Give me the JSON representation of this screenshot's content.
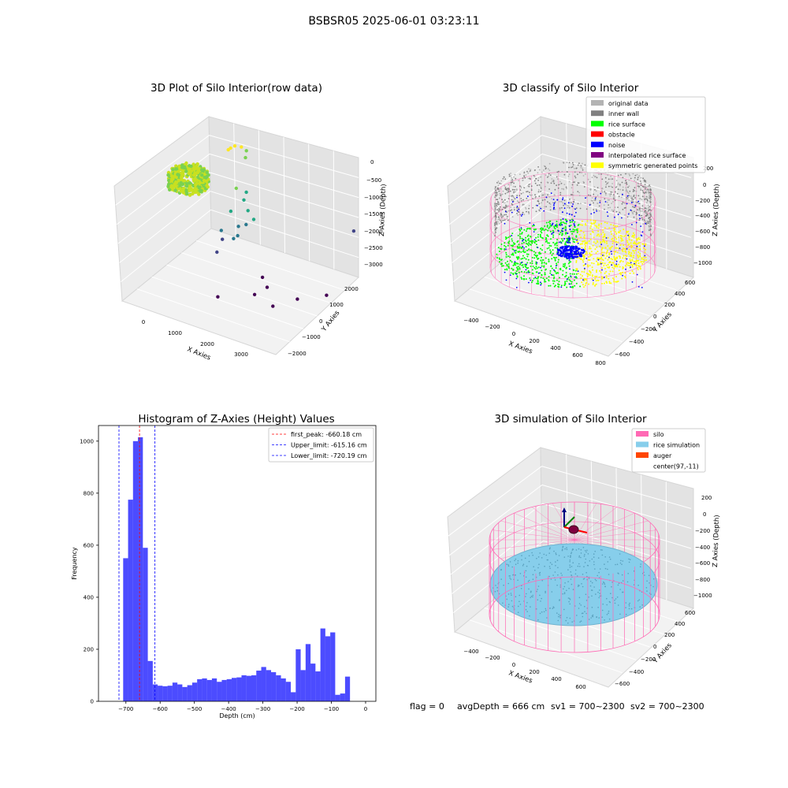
{
  "figure": {
    "suptitle": "BSBSR05 2025-06-01 03:23:11",
    "footer": {
      "flag": "flag = 0",
      "avg": "avgDepth = 666 cm",
      "sv1": "sv1 = 700~2300",
      "sv2": "sv2 = 700~2300"
    }
  },
  "colors": {
    "grey_light": "#b3b3b3",
    "grey_dark": "#808080",
    "rice_green": "#00ff00",
    "obstacle_red": "#ff0000",
    "noise_blue": "#0000ff",
    "interp_purple": "#800080",
    "sym_yellow": "#ffff00",
    "silo_pink": "#ff69b4",
    "rice_sim": "#87ceeb",
    "auger": "#ff4500",
    "hist_bar": "#0000ff"
  },
  "chart_data": [
    {
      "type": "scatter",
      "title": "3D Plot of Silo Interior(row data)",
      "xlabel": "X Axies",
      "ylabel": "Y Axies",
      "zlabel": "Z Axies (Depth)",
      "x_ticks": [
        "0",
        "1000",
        "2000",
        "3000"
      ],
      "y_ticks": [
        "−2000",
        "−1000",
        "0",
        "1000",
        "2000"
      ],
      "z_ticks": [
        "0",
        "−500",
        "−1000",
        "−1500",
        "−2000",
        "−2500",
        "−3000"
      ],
      "points": [
        [
          -600,
          1500,
          -350
        ],
        [
          -500,
          1600,
          -400
        ],
        [
          -400,
          1650,
          -500
        ],
        [
          -700,
          1400,
          -450
        ],
        [
          -550,
          1300,
          -300
        ],
        [
          -300,
          1500,
          -600
        ],
        [
          200,
          600,
          -900
        ],
        [
          400,
          700,
          -1000
        ],
        [
          500,
          500,
          -1100
        ],
        [
          300,
          300,
          -1400
        ],
        [
          700,
          400,
          -1300
        ],
        [
          600,
          200,
          -1700
        ],
        [
          900,
          100,
          -1500
        ],
        [
          200,
          100,
          -1900
        ],
        [
          400,
          -100,
          -2000
        ],
        [
          800,
          -200,
          -1800
        ],
        [
          1000,
          -300,
          -1600
        ],
        [
          500,
          -400,
          -2200
        ],
        [
          1200,
          0,
          -1200
        ],
        [
          2500,
          1800,
          -2000
        ],
        [
          1700,
          -300,
          -2600
        ],
        [
          2000,
          -500,
          -2700
        ],
        [
          1900,
          -800,
          -2800
        ],
        [
          2600,
          -200,
          -3000
        ],
        [
          1200,
          -1200,
          -2900
        ],
        [
          2500,
          -900,
          -2900
        ],
        [
          3000,
          300,
          -3000
        ]
      ]
    },
    {
      "type": "scatter",
      "title": "3D classify of Silo Interior",
      "xlabel": "X Axies",
      "ylabel": "Y Axies",
      "zlabel": "Z Axies (Depth)",
      "x_ticks": [
        "−400",
        "−200",
        "0",
        "200",
        "400",
        "600",
        "800"
      ],
      "y_ticks": [
        "−600",
        "−400",
        "−200",
        "0",
        "200",
        "400",
        "600"
      ],
      "z_ticks": [
        "−1000",
        "−800",
        "−600",
        "−400",
        "−200",
        "0",
        "200"
      ],
      "legend": [
        {
          "label": "original data",
          "color": "#b3b3b3"
        },
        {
          "label": "inner wall",
          "color": "#808080"
        },
        {
          "label": "rice surface",
          "color": "#00ff00"
        },
        {
          "label": "obstacle",
          "color": "#ff0000"
        },
        {
          "label": "noise",
          "color": "#0000ff"
        },
        {
          "label": "interpolated rice surface",
          "color": "#800080"
        },
        {
          "label": "symmetric generated points",
          "color": "#ffff00"
        }
      ],
      "legend_loc": "upper right"
    },
    {
      "type": "bar",
      "title": "Histogram of Z-Axies (Height) Values",
      "xlabel": "Depth (cm)",
      "ylabel": "Frequency",
      "xlim": [
        -780,
        30
      ],
      "ylim": [
        0,
        1060
      ],
      "x_ticks": [
        -700,
        -600,
        -500,
        -400,
        -300,
        -200,
        -100,
        0
      ],
      "x_tick_labels": [
        "−700",
        "−600",
        "−500",
        "−400",
        "−300",
        "−200",
        "−100",
        "0"
      ],
      "y_ticks": [
        0,
        200,
        400,
        600,
        800,
        1000
      ],
      "y_tick_labels": [
        "0",
        "200",
        "400",
        "600",
        "800",
        "1000"
      ],
      "bin_start": -708,
      "bin_width": 14.4,
      "values": [
        550,
        775,
        1000,
        1015,
        590,
        155,
        65,
        60,
        58,
        60,
        72,
        65,
        55,
        62,
        72,
        85,
        88,
        82,
        88,
        75,
        82,
        85,
        90,
        92,
        100,
        98,
        100,
        118,
        132,
        120,
        112,
        100,
        88,
        75,
        35,
        200,
        120,
        220,
        145,
        115,
        280,
        250,
        265,
        25,
        30,
        95
      ],
      "vlines": [
        {
          "label": "first_peak: -660.18 cm",
          "x": -660.18,
          "color": "#ff0000"
        },
        {
          "label": "Upper_limit: -615.16 cm",
          "x": -615.16,
          "color": "#0000ff"
        },
        {
          "label": "Lower_limit: -720.19 cm",
          "x": -720.19,
          "color": "#0000ff"
        }
      ],
      "legend_loc": "upper right"
    },
    {
      "type": "scatter",
      "title": "3D simulation of Silo Interior",
      "xlabel": "X Axies",
      "ylabel": "Y Axies",
      "zlabel": "Z Axies (Depth)",
      "x_ticks": [
        "−400",
        "−200",
        "0",
        "200",
        "400",
        "600"
      ],
      "y_ticks": [
        "−600",
        "−400",
        "−200",
        "0",
        "200",
        "400",
        "600"
      ],
      "z_ticks": [
        "−1000",
        "−800",
        "−600",
        "−400",
        "−200",
        "0",
        "200"
      ],
      "legend": [
        {
          "label": "silo",
          "color": "#ff69b4"
        },
        {
          "label": "rice simulation",
          "color": "#87ceeb"
        },
        {
          "label": "auger",
          "color": "#ff4500"
        },
        {
          "label": "center(97,-11)",
          "color": "#ffffff"
        }
      ],
      "legend_loc": "upper right"
    }
  ]
}
